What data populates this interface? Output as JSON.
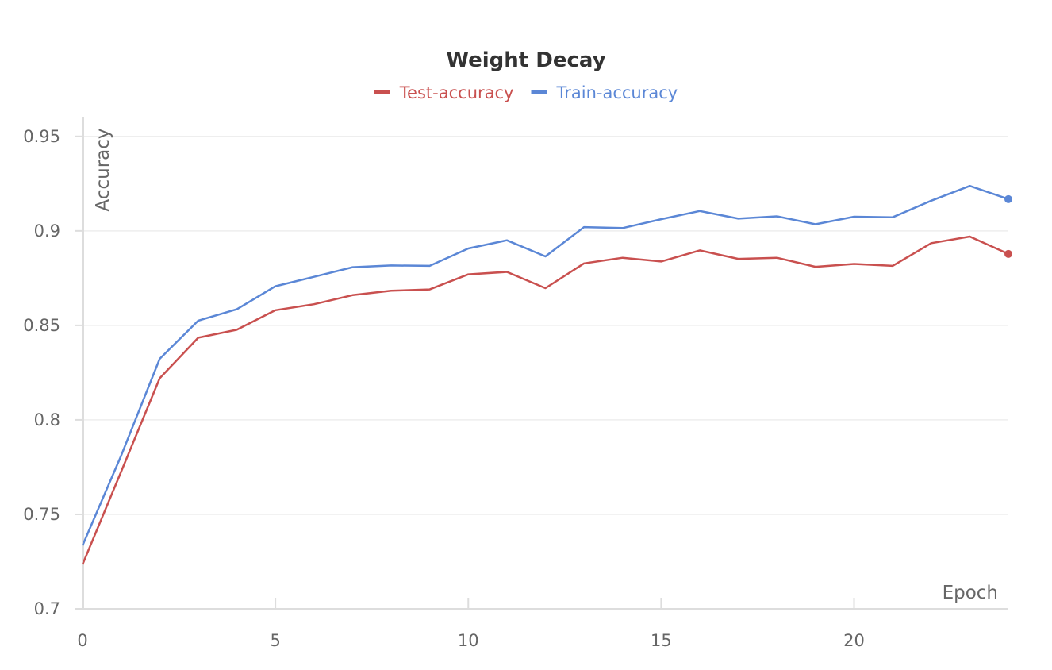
{
  "chart_data": {
    "type": "line",
    "title": "Weight Decay",
    "xlabel": "Epoch",
    "ylabel": "Accuracy",
    "xlim": [
      0,
      24
    ],
    "ylim": [
      0.7,
      0.96
    ],
    "x_ticks": [
      0,
      5,
      10,
      15,
      20
    ],
    "x_tick_labels": [
      "0",
      "5",
      "10",
      "15",
      "20"
    ],
    "y_ticks": [
      0.7,
      0.75,
      0.8,
      0.85,
      0.9,
      0.95
    ],
    "y_tick_labels": [
      "0.7",
      "0.75",
      "0.8",
      "0.85",
      "0.9",
      "0.95"
    ],
    "grid": "horizontal",
    "legend_position": "top-center",
    "x": [
      0,
      1,
      2,
      3,
      4,
      5,
      6,
      7,
      8,
      9,
      10,
      11,
      12,
      13,
      14,
      15,
      16,
      17,
      18,
      19,
      20,
      21,
      22,
      23,
      24
    ],
    "series": [
      {
        "name": "Test-accuracy",
        "color": "#c9504f",
        "values": [
          0.7235,
          0.7725,
          0.822,
          0.8435,
          0.8477,
          0.858,
          0.8612,
          0.866,
          0.8683,
          0.869,
          0.877,
          0.8783,
          0.8697,
          0.8828,
          0.8858,
          0.8838,
          0.8897,
          0.8852,
          0.8858,
          0.881,
          0.8825,
          0.8815,
          0.8935,
          0.897,
          0.8878
        ]
      },
      {
        "name": "Train-accuracy",
        "color": "#5b87d6",
        "values": [
          0.7335,
          0.781,
          0.8323,
          0.8525,
          0.8585,
          0.8707,
          0.8757,
          0.8808,
          0.8817,
          0.8815,
          0.8907,
          0.895,
          0.8865,
          0.902,
          0.9015,
          0.9062,
          0.9105,
          0.9065,
          0.9077,
          0.9035,
          0.9075,
          0.9072,
          0.916,
          0.9238,
          0.9168
        ]
      }
    ]
  }
}
